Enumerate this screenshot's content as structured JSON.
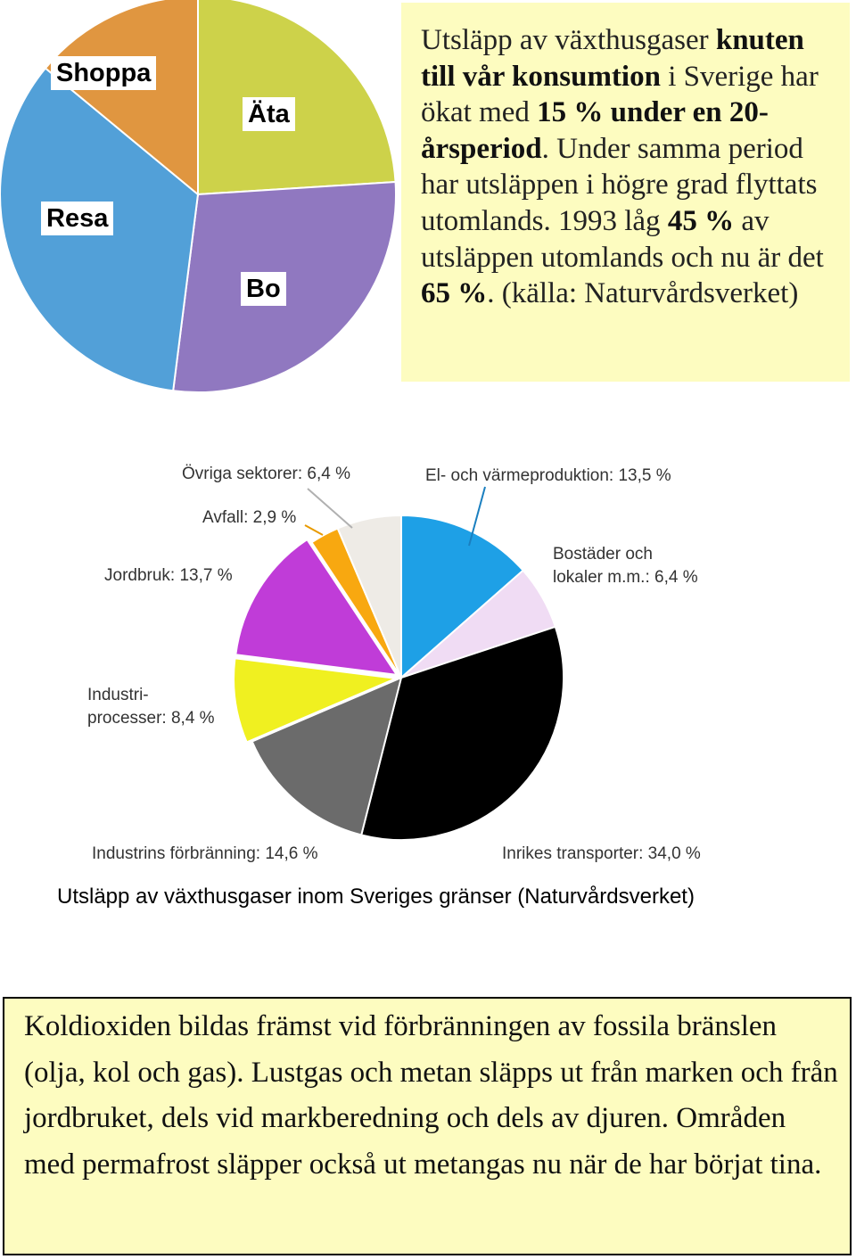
{
  "chart_data": [
    {
      "type": "pie",
      "slices": [
        {
          "label": "Äta",
          "value": 24,
          "color": "#cdd24a"
        },
        {
          "label": "Bo",
          "value": 28,
          "color": "#9078c0"
        },
        {
          "label": "Resa",
          "value": 34,
          "color": "#52a0d8"
        },
        {
          "label": "Shoppa",
          "value": 14,
          "color": "#e09640"
        }
      ]
    },
    {
      "type": "pie",
      "title": "Utsläpp av växthusgaser inom Sveriges gränser (Naturvårdsverket)",
      "slices": [
        {
          "label": "El- och värmeproduktion: 13,5 %",
          "value": 13.5,
          "color": "#1ea0e6"
        },
        {
          "label": "Bostäder och lokaler m.m.: 6,4 %",
          "value": 6.4,
          "color": "#f0dcf4"
        },
        {
          "label": "Inrikes transporter: 34,0 %",
          "value": 34.0,
          "color": "#000000"
        },
        {
          "label": "Industrins förbränning: 14,6 %",
          "value": 14.6,
          "color": "#6b6b6b"
        },
        {
          "label": "Industri-processer: 8,4 %",
          "value": 8.4,
          "color": "#f0f020"
        },
        {
          "label": "Jordbruk: 13,7 %",
          "value": 13.7,
          "color": "#c03cd8"
        },
        {
          "label": "Avfall: 2,9 %",
          "value": 2.9,
          "color": "#f8a810"
        },
        {
          "label": "Övriga sektorer: 6,4 %",
          "value": 6.4,
          "color": "#eeebe6"
        }
      ]
    }
  ],
  "chart1_labels": {
    "shoppa": "Shoppa",
    "ata": "Äta",
    "resa": "Resa",
    "bo": "Bo"
  },
  "info_box": {
    "t1": "Utsläpp av växthusgaser ",
    "b1": "knuten till vår konsumtion",
    "t2": " i Sverige har ökat med ",
    "b2": "15 % under en 20-årsperiod",
    "t3": ". Under samma period har utsläppen i högre grad flyttats utomlands. 1993 låg ",
    "b3": "45 %",
    "t4": " av utsläppen utom­lands och nu är det ",
    "b4": "65 %",
    "t5": ". (källa: Naturvårdsverket)"
  },
  "chart2_labels": {
    "ovriga": "Övriga sektorer: 6,4 %",
    "el": "El- och värmeproduktion: 13,5 %",
    "avfall": "Avfall: 2,9 %",
    "bostader_1": "Bostäder och",
    "bostader_2": "lokaler m.m.: 6,4 %",
    "jordbruk": "Jordbruk: 13,7 %",
    "industri_1": "Industri-",
    "industri_2": "processer: 8,4 %",
    "industrins": "Industrins förbränning: 14,6 %",
    "inrikes": "Inrikes transporter: 34,0 %"
  },
  "caption": "Utsläpp av växthusgaser inom Sveriges gränser (Naturvårdsverket)",
  "bottom_text": "Koldioxiden bildas främst vid förbränningen av fossila bränslen (olja, kol och gas). Lustgas och metan släpps ut från marken och från jordbruket, dels vid markberedning och dels av djuren. Områden med permafrost släpper också ut metangas nu när de har börjat tina."
}
